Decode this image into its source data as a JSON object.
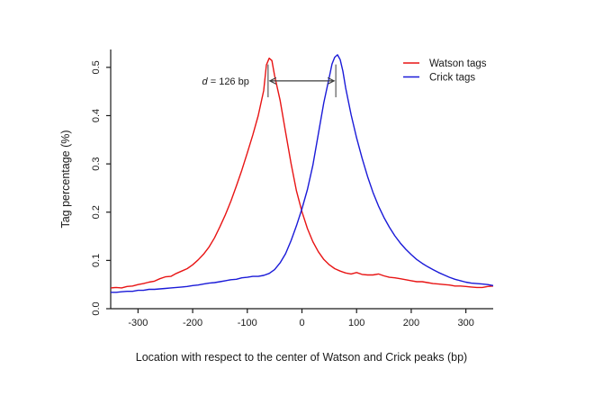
{
  "chart_data": {
    "type": "line",
    "xlabel": "Location with respect to the center of Watson and Crick peaks (bp)",
    "ylabel": "Tag percentage (%)",
    "xlim": [
      -350,
      350
    ],
    "ylim": [
      0,
      0.537
    ],
    "grid": false,
    "xticks": [
      {
        "value": -300,
        "label": "-300"
      },
      {
        "value": -200,
        "label": "-200"
      },
      {
        "value": -100,
        "label": "-100"
      },
      {
        "value": 0,
        "label": "0"
      },
      {
        "value": 100,
        "label": "100"
      },
      {
        "value": 200,
        "label": "200"
      },
      {
        "value": 300,
        "label": "300"
      }
    ],
    "yticks": [
      {
        "value": 0.0,
        "label": "0.0"
      },
      {
        "value": 0.1,
        "label": "0.1"
      },
      {
        "value": 0.2,
        "label": "0.2"
      },
      {
        "value": 0.3,
        "label": "0.3"
      },
      {
        "value": 0.4,
        "label": "0.4"
      },
      {
        "value": 0.5,
        "label": "0.5"
      }
    ],
    "legend": {
      "position": "top-right",
      "entries": [
        {
          "label": "Watson tags",
          "color": "#e81414"
        },
        {
          "label": "Crick tags",
          "color": "#1a1ad8"
        }
      ]
    },
    "annotation": {
      "text_italic": "d",
      "text_rest": " = 126 bp",
      "peak_distance_bp": 126,
      "from_bp": -62,
      "to_bp": 62,
      "arrow_value": 0.472,
      "marker_top_value": 0.506,
      "marker_bottom_value": 0.438
    },
    "series": [
      {
        "name": "Watson tags",
        "color": "#e81414",
        "points": [
          [
            -350,
            0.043
          ],
          [
            -340,
            0.044
          ],
          [
            -330,
            0.043
          ],
          [
            -320,
            0.046
          ],
          [
            -310,
            0.047
          ],
          [
            -300,
            0.05
          ],
          [
            -290,
            0.052
          ],
          [
            -280,
            0.055
          ],
          [
            -270,
            0.057
          ],
          [
            -260,
            0.062
          ],
          [
            -250,
            0.066
          ],
          [
            -240,
            0.067
          ],
          [
            -230,
            0.073
          ],
          [
            -220,
            0.078
          ],
          [
            -210,
            0.083
          ],
          [
            -200,
            0.091
          ],
          [
            -190,
            0.101
          ],
          [
            -180,
            0.113
          ],
          [
            -170,
            0.128
          ],
          [
            -160,
            0.147
          ],
          [
            -150,
            0.17
          ],
          [
            -140,
            0.195
          ],
          [
            -130,
            0.223
          ],
          [
            -120,
            0.254
          ],
          [
            -110,
            0.287
          ],
          [
            -100,
            0.323
          ],
          [
            -90,
            0.36
          ],
          [
            -80,
            0.4
          ],
          [
            -70,
            0.452
          ],
          [
            -65,
            0.505
          ],
          [
            -60,
            0.519
          ],
          [
            -55,
            0.514
          ],
          [
            -50,
            0.483
          ],
          [
            -40,
            0.432
          ],
          [
            -30,
            0.366
          ],
          [
            -20,
            0.301
          ],
          [
            -10,
            0.244
          ],
          [
            0,
            0.201
          ],
          [
            10,
            0.166
          ],
          [
            20,
            0.139
          ],
          [
            30,
            0.118
          ],
          [
            40,
            0.102
          ],
          [
            50,
            0.091
          ],
          [
            60,
            0.083
          ],
          [
            70,
            0.078
          ],
          [
            80,
            0.074
          ],
          [
            90,
            0.072
          ],
          [
            100,
            0.075
          ],
          [
            110,
            0.071
          ],
          [
            120,
            0.07
          ],
          [
            130,
            0.07
          ],
          [
            140,
            0.072
          ],
          [
            150,
            0.068
          ],
          [
            160,
            0.065
          ],
          [
            170,
            0.064
          ],
          [
            180,
            0.062
          ],
          [
            190,
            0.06
          ],
          [
            200,
            0.058
          ],
          [
            210,
            0.056
          ],
          [
            220,
            0.056
          ],
          [
            230,
            0.054
          ],
          [
            240,
            0.052
          ],
          [
            250,
            0.051
          ],
          [
            260,
            0.05
          ],
          [
            270,
            0.049
          ],
          [
            280,
            0.047
          ],
          [
            290,
            0.047
          ],
          [
            300,
            0.046
          ],
          [
            310,
            0.045
          ],
          [
            320,
            0.044
          ],
          [
            330,
            0.044
          ],
          [
            340,
            0.046
          ],
          [
            350,
            0.047
          ]
        ]
      },
      {
        "name": "Crick tags",
        "color": "#1a1ad8",
        "points": [
          [
            -350,
            0.034
          ],
          [
            -340,
            0.034
          ],
          [
            -330,
            0.035
          ],
          [
            -320,
            0.036
          ],
          [
            -310,
            0.036
          ],
          [
            -300,
            0.038
          ],
          [
            -290,
            0.038
          ],
          [
            -280,
            0.04
          ],
          [
            -270,
            0.04
          ],
          [
            -260,
            0.041
          ],
          [
            -250,
            0.042
          ],
          [
            -240,
            0.043
          ],
          [
            -230,
            0.044
          ],
          [
            -220,
            0.045
          ],
          [
            -210,
            0.046
          ],
          [
            -200,
            0.048
          ],
          [
            -190,
            0.049
          ],
          [
            -180,
            0.051
          ],
          [
            -170,
            0.053
          ],
          [
            -160,
            0.054
          ],
          [
            -150,
            0.056
          ],
          [
            -140,
            0.058
          ],
          [
            -130,
            0.06
          ],
          [
            -120,
            0.061
          ],
          [
            -110,
            0.064
          ],
          [
            -100,
            0.065
          ],
          [
            -90,
            0.067
          ],
          [
            -80,
            0.067
          ],
          [
            -70,
            0.069
          ],
          [
            -60,
            0.073
          ],
          [
            -50,
            0.081
          ],
          [
            -40,
            0.095
          ],
          [
            -30,
            0.114
          ],
          [
            -20,
            0.141
          ],
          [
            -10,
            0.172
          ],
          [
            0,
            0.207
          ],
          [
            10,
            0.247
          ],
          [
            20,
            0.297
          ],
          [
            30,
            0.362
          ],
          [
            40,
            0.427
          ],
          [
            50,
            0.48
          ],
          [
            55,
            0.507
          ],
          [
            60,
            0.521
          ],
          [
            65,
            0.526
          ],
          [
            70,
            0.516
          ],
          [
            75,
            0.492
          ],
          [
            80,
            0.457
          ],
          [
            90,
            0.402
          ],
          [
            100,
            0.354
          ],
          [
            110,
            0.312
          ],
          [
            120,
            0.274
          ],
          [
            130,
            0.241
          ],
          [
            140,
            0.213
          ],
          [
            150,
            0.189
          ],
          [
            160,
            0.169
          ],
          [
            170,
            0.151
          ],
          [
            180,
            0.136
          ],
          [
            190,
            0.123
          ],
          [
            200,
            0.112
          ],
          [
            210,
            0.102
          ],
          [
            220,
            0.094
          ],
          [
            230,
            0.087
          ],
          [
            240,
            0.081
          ],
          [
            250,
            0.075
          ],
          [
            260,
            0.07
          ],
          [
            270,
            0.065
          ],
          [
            280,
            0.061
          ],
          [
            290,
            0.058
          ],
          [
            300,
            0.055
          ],
          [
            310,
            0.053
          ],
          [
            320,
            0.052
          ],
          [
            330,
            0.051
          ],
          [
            340,
            0.05
          ],
          [
            350,
            0.048
          ]
        ]
      }
    ]
  }
}
